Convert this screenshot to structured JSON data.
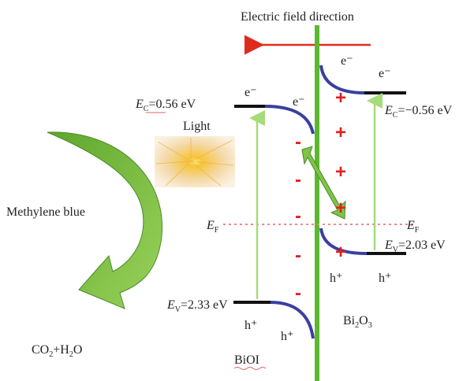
{
  "title": "Electric field direction",
  "light": "Light",
  "dye": "Methylene blue",
  "products": [
    "CO",
    "2",
    "+H",
    "2",
    "O"
  ],
  "fermi_level": {
    "left": {
      "symbol": "E",
      "subscript": "F"
    },
    "right": {
      "symbol": "E",
      "subscript": "F"
    }
  },
  "bioi": {
    "name": "BiOI",
    "conduction_band": {
      "symbol": "E",
      "subscript": "C",
      "value": "=0.56 eV"
    },
    "valence_band": {
      "symbol": "E",
      "subscript": "V",
      "value": "=2.33 eV"
    },
    "electrons": [
      "e⁻",
      "e⁻"
    ],
    "holes": [
      "h⁺",
      "h⁺"
    ],
    "charges": [
      "-",
      "-",
      "-",
      "-",
      "-"
    ]
  },
  "bi2o3": {
    "name": [
      "Bi",
      "2",
      "O",
      "3"
    ],
    "conduction_band": {
      "symbol": "E",
      "subscript": "C",
      "value": "=−0.56 eV"
    },
    "valence_band": {
      "symbol": "E",
      "subscript": "V",
      "value": "=2.03 eV"
    },
    "electrons": [
      "e⁻",
      "e⁻"
    ],
    "holes": [
      "h⁺",
      "h⁺"
    ],
    "charges": [
      "+",
      "+",
      "+",
      "+",
      "+"
    ]
  }
}
